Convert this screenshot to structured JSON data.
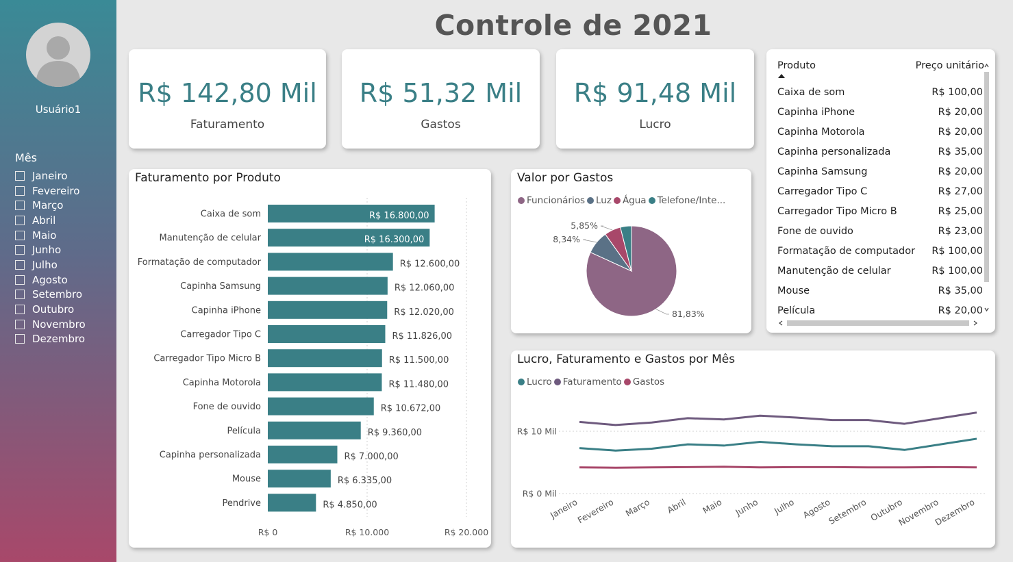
{
  "sidebar": {
    "username": "Usuário1",
    "filter_title": "Mês",
    "months": [
      "Janeiro",
      "Fevereiro",
      "Março",
      "Abril",
      "Maio",
      "Junho",
      "Julho",
      "Agosto",
      "Setembro",
      "Outubro",
      "Novembro",
      "Dezembro"
    ]
  },
  "header": {
    "title": "Controle de 2021"
  },
  "kpis": [
    {
      "value": "R$ 142,80 Mil",
      "label": "Faturamento"
    },
    {
      "value": "R$ 51,32 Mil",
      "label": "Gastos"
    },
    {
      "value": "R$ 91,48 Mil",
      "label": "Lucro"
    }
  ],
  "colors": {
    "teal": "#3a7f86",
    "purple": "#6e5a7e",
    "pink": "#a8486a",
    "slate": "#5a7186"
  },
  "price_table": {
    "headers": {
      "product": "Produto",
      "unit_price": "Preço unitário"
    },
    "rows": [
      {
        "product": "Caixa de som",
        "price": "R$ 100,00"
      },
      {
        "product": "Capinha iPhone",
        "price": "R$ 20,00"
      },
      {
        "product": "Capinha Motorola",
        "price": "R$ 20,00"
      },
      {
        "product": "Capinha personalizada",
        "price": "R$ 35,00"
      },
      {
        "product": "Capinha Samsung",
        "price": "R$ 20,00"
      },
      {
        "product": "Carregador Tipo C",
        "price": "R$ 27,00"
      },
      {
        "product": "Carregador Tipo Micro B",
        "price": "R$ 25,00"
      },
      {
        "product": "Fone de ouvido",
        "price": "R$ 23,00"
      },
      {
        "product": "Formatação de computador",
        "price": "R$ 100,00"
      },
      {
        "product": "Manutenção de celular",
        "price": "R$ 100,00"
      },
      {
        "product": "Mouse",
        "price": "R$ 35,00"
      },
      {
        "product": "Película",
        "price": "R$ 20,00"
      }
    ]
  },
  "chart_data": [
    {
      "type": "bar",
      "title": "Faturamento por Produto",
      "categories": [
        "Caixa de som",
        "Manutenção de celular",
        "Formatação de computador",
        "Capinha Samsung",
        "Capinha iPhone",
        "Carregador Tipo C",
        "Carregador Tipo Micro B",
        "Capinha Motorola",
        "Fone de ouvido",
        "Película",
        "Capinha personalizada",
        "Mouse",
        "Pendrive"
      ],
      "values": [
        16800,
        16300,
        12600,
        12060,
        12020,
        11826,
        11500,
        11480,
        10672,
        9360,
        7000,
        6335,
        4850
      ],
      "data_labels": [
        "R$ 16.800,00",
        "R$ 16.300,00",
        "R$ 12.600,00",
        "R$ 12.060,00",
        "R$ 12.020,00",
        "R$ 11.826,00",
        "R$ 11.500,00",
        "R$ 11.480,00",
        "R$ 10.672,00",
        "R$ 9.360,00",
        "R$ 7.000,00",
        "R$ 6.335,00",
        "R$ 4.850,00"
      ],
      "xlim": [
        0,
        20000
      ],
      "x_ticks": [
        0,
        10000,
        20000
      ],
      "x_tick_labels": [
        "R$ 0",
        "R$ 10.000",
        "R$ 20.000"
      ]
    },
    {
      "type": "pie",
      "title": "Valor por Gastos",
      "legend": [
        "Funcionários",
        "Luz",
        "Água",
        "Telefone/Inte..."
      ],
      "values": [
        81.83,
        8.34,
        5.85,
        3.98
      ],
      "data_labels": [
        "81,83%",
        "8,34%",
        "5,85%",
        ""
      ]
    },
    {
      "type": "line",
      "title": "Lucro, Faturamento e Gastos por Mês",
      "x": [
        "Janeiro",
        "Fevereiro",
        "Março",
        "Abril",
        "Maio",
        "Junho",
        "Julho",
        "Agosto",
        "Setembro",
        "Outubro",
        "Novembro",
        "Dezembro"
      ],
      "series": [
        {
          "name": "Lucro",
          "values": [
            7300,
            6900,
            7200,
            7900,
            7700,
            8300,
            7900,
            7600,
            7600,
            7000,
            7900,
            8800
          ]
        },
        {
          "name": "Faturamento",
          "values": [
            11500,
            11000,
            11400,
            12100,
            11900,
            12500,
            12200,
            11800,
            11800,
            11200,
            12100,
            13000
          ]
        },
        {
          "name": "Gastos",
          "values": [
            4200,
            4150,
            4200,
            4250,
            4300,
            4200,
            4250,
            4250,
            4200,
            4200,
            4250,
            4200
          ]
        }
      ],
      "y_ticks": [
        0,
        10000
      ],
      "y_tick_labels": [
        "R$ 0 Mil",
        "R$ 10 Mil"
      ],
      "grid": true,
      "legend_position": "top-left"
    }
  ]
}
